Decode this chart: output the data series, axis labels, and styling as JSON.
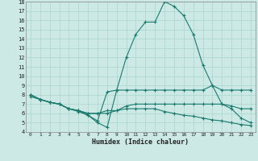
{
  "bg_color": "#cce9e5",
  "line_color": "#1a7a6e",
  "grid_color": "#aad4cf",
  "xlabel": "Humidex (Indice chaleur)",
  "xlim": [
    -0.5,
    23.5
  ],
  "ylim": [
    4,
    18
  ],
  "yticks": [
    4,
    5,
    6,
    7,
    8,
    9,
    10,
    11,
    12,
    13,
    14,
    15,
    16,
    17,
    18
  ],
  "xticks": [
    0,
    1,
    2,
    3,
    4,
    5,
    6,
    7,
    8,
    9,
    10,
    11,
    12,
    13,
    14,
    15,
    16,
    17,
    18,
    19,
    20,
    21,
    22,
    23
  ],
  "line1_x": [
    0,
    1,
    2,
    3,
    4,
    5,
    6,
    7,
    8,
    9,
    10,
    11,
    12,
    13,
    14,
    15,
    16,
    17,
    18,
    19,
    20,
    21,
    22,
    23
  ],
  "line1_y": [
    8,
    7.5,
    7.2,
    7.0,
    6.5,
    6.2,
    5.8,
    5.0,
    4.5,
    8.5,
    12.0,
    14.5,
    15.8,
    15.8,
    18.0,
    17.5,
    16.5,
    14.5,
    11.2,
    9.0,
    7.0,
    6.5,
    5.5,
    5.0
  ],
  "line2_x": [
    0,
    1,
    2,
    3,
    4,
    5,
    6,
    7,
    8,
    9,
    10,
    11,
    12,
    13,
    14,
    15,
    16,
    17,
    18,
    19,
    20,
    21,
    22,
    23
  ],
  "line2_y": [
    8,
    7.5,
    7.2,
    7.0,
    6.5,
    6.3,
    5.8,
    5.2,
    8.3,
    8.5,
    8.5,
    8.5,
    8.5,
    8.5,
    8.5,
    8.5,
    8.5,
    8.5,
    8.5,
    9.0,
    8.5,
    8.5,
    8.5,
    8.5
  ],
  "line3_x": [
    0,
    1,
    2,
    3,
    4,
    5,
    6,
    7,
    8,
    9,
    10,
    11,
    12,
    13,
    14,
    15,
    16,
    17,
    18,
    19,
    20,
    21,
    22,
    23
  ],
  "line3_y": [
    8,
    7.5,
    7.2,
    7.0,
    6.5,
    6.3,
    6.0,
    6.0,
    6.0,
    6.3,
    6.5,
    6.5,
    6.5,
    6.5,
    6.2,
    6.0,
    5.8,
    5.7,
    5.5,
    5.3,
    5.2,
    5.0,
    4.8,
    4.7
  ],
  "line4_x": [
    0,
    1,
    2,
    3,
    4,
    5,
    6,
    7,
    8,
    9,
    10,
    11,
    12,
    13,
    14,
    15,
    16,
    17,
    18,
    19,
    20,
    21,
    22,
    23
  ],
  "line4_y": [
    7.8,
    7.5,
    7.2,
    7.0,
    6.5,
    6.3,
    6.0,
    6.0,
    6.3,
    6.3,
    6.8,
    7.0,
    7.0,
    7.0,
    7.0,
    7.0,
    7.0,
    7.0,
    7.0,
    7.0,
    7.0,
    6.8,
    6.5,
    6.5
  ]
}
